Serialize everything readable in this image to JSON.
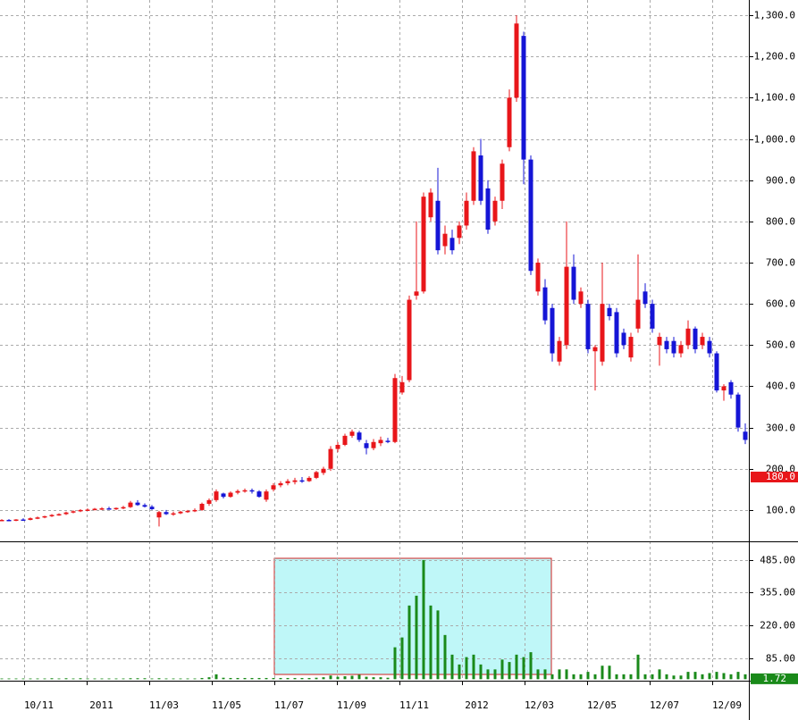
{
  "chart_data": {
    "type": "candlestick",
    "open": [
      75,
      76,
      75,
      77,
      76,
      80,
      82,
      85,
      88,
      90,
      94,
      97,
      100,
      101,
      103,
      104,
      103,
      105,
      107,
      118,
      112,
      108,
      82,
      95,
      90,
      92,
      96,
      98,
      100,
      115,
      124,
      140,
      132,
      142,
      146,
      148,
      145,
      125,
      150,
      160,
      165,
      168,
      172,
      170,
      178,
      190,
      200,
      248,
      258,
      280,
      288,
      262,
      250,
      262,
      268,
      265,
      385,
      415,
      620,
      630,
      810,
      850,
      740,
      760,
      760,
      790,
      850,
      960,
      880,
      800,
      850,
      980,
      1100,
      1250,
      950,
      630,
      640,
      590,
      460,
      500,
      690,
      600,
      600,
      485,
      460,
      590,
      580,
      530,
      470,
      540,
      630,
      600,
      500,
      510,
      510,
      480,
      500,
      540,
      500,
      510,
      480,
      390,
      410,
      380,
      290
    ],
    "high": [
      78,
      78,
      78,
      80,
      82,
      84,
      86,
      90,
      92,
      96,
      99,
      102,
      104,
      105,
      107,
      108,
      106,
      110,
      122,
      124,
      116,
      112,
      98,
      100,
      96,
      98,
      100,
      104,
      118,
      128,
      150,
      142,
      145,
      150,
      152,
      152,
      148,
      150,
      165,
      170,
      175,
      178,
      180,
      182,
      195,
      205,
      255,
      265,
      285,
      295,
      292,
      270,
      272,
      278,
      275,
      430,
      425,
      620,
      800,
      870,
      880,
      930,
      790,
      780,
      800,
      870,
      980,
      1000,
      900,
      860,
      950,
      1120,
      1300,
      1260,
      960,
      710,
      660,
      600,
      520,
      800,
      720,
      640,
      610,
      500,
      700,
      600,
      590,
      540,
      530,
      720,
      650,
      610,
      530,
      520,
      520,
      510,
      560,
      545,
      530,
      520,
      485,
      405,
      415,
      385,
      310
    ],
    "low": [
      73,
      74,
      73,
      75,
      75,
      78,
      80,
      83,
      86,
      88,
      92,
      95,
      98,
      99,
      100,
      101,
      100,
      102,
      105,
      110,
      106,
      100,
      60,
      88,
      86,
      90,
      93,
      95,
      98,
      110,
      120,
      128,
      130,
      138,
      142,
      140,
      130,
      120,
      145,
      155,
      160,
      162,
      166,
      168,
      175,
      185,
      195,
      240,
      255,
      275,
      265,
      235,
      245,
      255,
      262,
      262,
      380,
      410,
      610,
      625,
      800,
      720,
      720,
      720,
      745,
      780,
      840,
      840,
      770,
      790,
      830,
      970,
      1090,
      890,
      670,
      620,
      550,
      460,
      450,
      490,
      600,
      590,
      480,
      390,
      450,
      560,
      470,
      490,
      460,
      530,
      590,
      530,
      450,
      480,
      470,
      470,
      490,
      480,
      490,
      470,
      385,
      365,
      370,
      290,
      260
    ],
    "close": [
      76,
      75,
      77,
      76,
      80,
      82,
      85,
      88,
      90,
      94,
      97,
      100,
      101,
      103,
      104,
      103,
      105,
      107,
      118,
      112,
      108,
      102,
      95,
      90,
      92,
      96,
      98,
      100,
      115,
      124,
      145,
      132,
      142,
      146,
      148,
      145,
      132,
      145,
      160,
      165,
      170,
      172,
      170,
      178,
      192,
      200,
      248,
      258,
      280,
      290,
      270,
      250,
      265,
      270,
      265,
      420,
      410,
      610,
      630,
      860,
      870,
      730,
      770,
      730,
      790,
      850,
      970,
      850,
      780,
      850,
      940,
      1100,
      1280,
      950,
      680,
      700,
      560,
      480,
      510,
      690,
      610,
      630,
      490,
      495,
      600,
      570,
      480,
      500,
      520,
      610,
      600,
      540,
      520,
      490,
      480,
      500,
      540,
      490,
      520,
      480,
      390,
      400,
      380,
      300,
      270
    ],
    "volume": [
      3,
      3,
      3,
      3,
      3,
      3,
      3,
      4,
      3,
      4,
      3,
      4,
      3,
      3,
      3,
      3,
      3,
      3,
      4,
      4,
      4,
      3,
      4,
      3,
      3,
      3,
      3,
      3,
      5,
      8,
      20,
      6,
      5,
      5,
      5,
      5,
      5,
      5,
      5,
      5,
      5,
      5,
      5,
      5,
      6,
      8,
      15,
      10,
      12,
      14,
      18,
      10,
      8,
      8,
      6,
      130,
      170,
      300,
      340,
      485,
      300,
      280,
      180,
      100,
      60,
      90,
      100,
      60,
      40,
      40,
      80,
      70,
      100,
      90,
      110,
      40,
      40,
      20,
      40,
      40,
      20,
      20,
      30,
      20,
      55,
      55,
      20,
      20,
      20,
      100,
      20,
      20,
      40,
      20,
      15,
      15,
      30,
      30,
      20,
      25,
      30,
      25,
      20,
      30,
      20
    ],
    "up_color": "#e8161a",
    "down_color": "#1515d6",
    "volume_color": "#1a8a1a",
    "xlim": [
      -0.25,
      104.5
    ],
    "xticks": [
      {
        "value": 3.1,
        "label": "10/11"
      },
      {
        "value": 11.9,
        "label": "2011"
      },
      {
        "value": 20.6,
        "label": "11/03"
      },
      {
        "value": 29.4,
        "label": "11/05"
      },
      {
        "value": 38.1,
        "label": "11/07"
      },
      {
        "value": 46.9,
        "label": "11/09"
      },
      {
        "value": 55.6,
        "label": "11/11"
      },
      {
        "value": 64.4,
        "label": "2012"
      },
      {
        "value": 73.1,
        "label": "12/03"
      },
      {
        "value": 81.9,
        "label": "12/05"
      },
      {
        "value": 90.6,
        "label": "12/07"
      },
      {
        "value": 99.4,
        "label": "12/09"
      }
    ],
    "ylim": [
      24,
      1337
    ],
    "yticks": [
      {
        "value": 100,
        "label": "100.0"
      },
      {
        "value": 200,
        "label": "200.0"
      },
      {
        "value": 300,
        "label": "300.0"
      },
      {
        "value": 400,
        "label": "400.0"
      },
      {
        "value": 500,
        "label": "500.0"
      },
      {
        "value": 600,
        "label": "600.0"
      },
      {
        "value": 700,
        "label": "700.0"
      },
      {
        "value": 800,
        "label": "800.0"
      },
      {
        "value": 900,
        "label": "900.0"
      },
      {
        "value": 1000,
        "label": "1,000.0"
      },
      {
        "value": 1100,
        "label": "1,100.0"
      },
      {
        "value": 1200,
        "label": "1,200.0"
      },
      {
        "value": 1300,
        "label": "1,300.0"
      }
    ],
    "volume_ylim": [
      -6,
      554
    ],
    "volume_yticks": [
      {
        "value": 85,
        "label": "85.00"
      },
      {
        "value": 220,
        "label": "220.00"
      },
      {
        "value": 355,
        "label": "355.00"
      },
      {
        "value": 485,
        "label": "485.00"
      }
    ],
    "price_marker": {
      "value": 180,
      "label": "180.0"
    },
    "volume_marker": {
      "value": 1.72,
      "label": "1.72"
    },
    "grid": true
  }
}
